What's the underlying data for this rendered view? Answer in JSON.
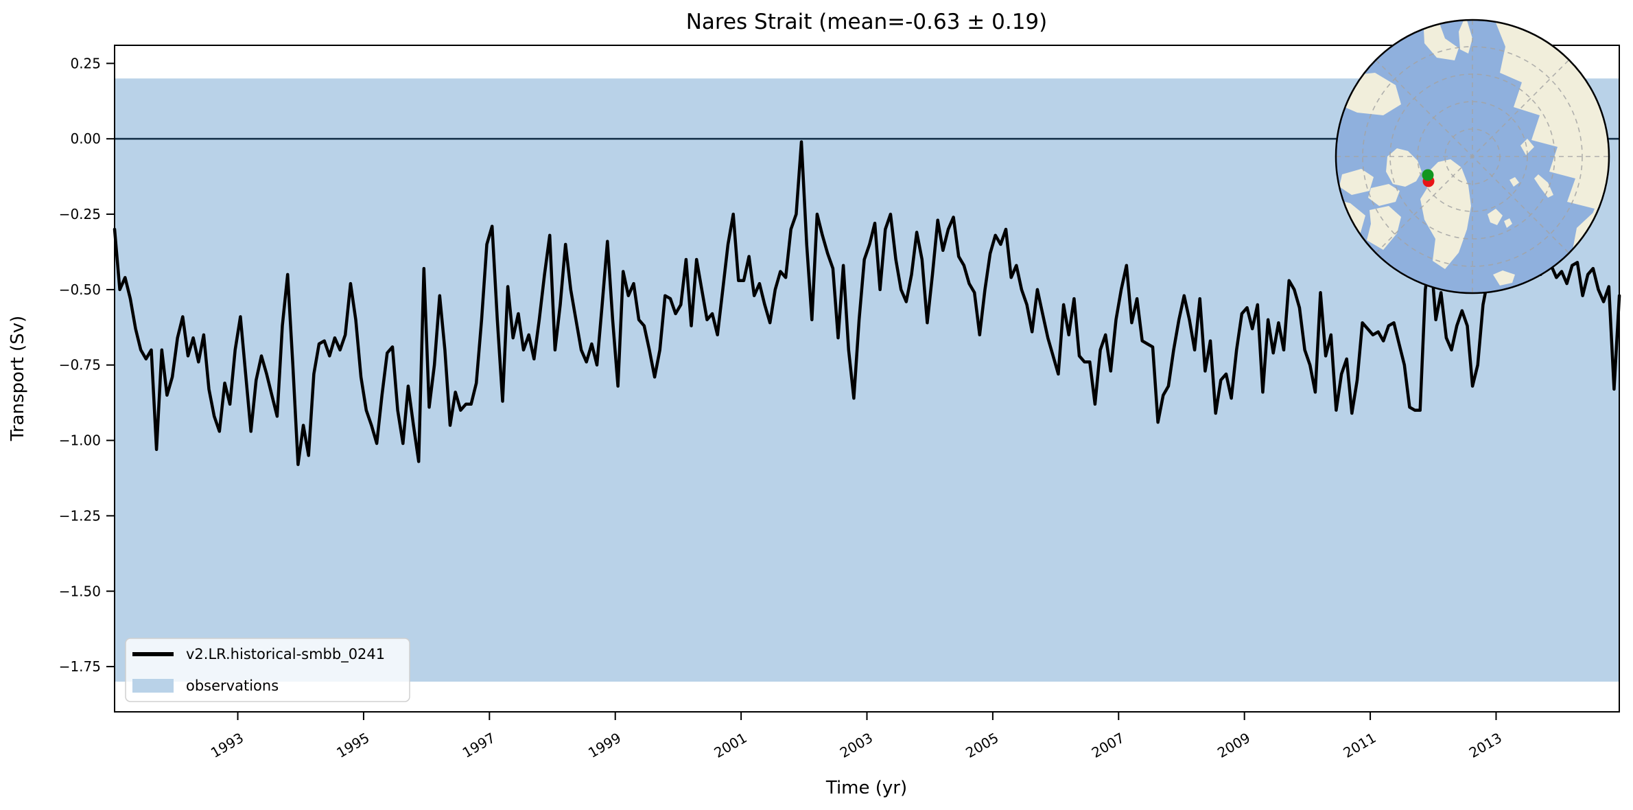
{
  "figure": {
    "title": "Nares Strait (mean=-0.63 ± 0.19)",
    "xlabel": "Time (yr)",
    "ylabel": "Transport (Sv)"
  },
  "legend": {
    "items": [
      {
        "label": "v2.LR.historical-smbb_0241",
        "swatch": "line",
        "color": "#000000"
      },
      {
        "label": "observations",
        "swatch": "patch",
        "color": "#b9d2e8"
      }
    ]
  },
  "chart_data": {
    "type": "line",
    "title": "Nares Strait (mean=-0.63 ± 0.19)",
    "xlabel": "Time (yr)",
    "ylabel": "Transport (Sv)",
    "xlim": [
      1991.042,
      2014.958
    ],
    "ylim": [
      -1.9,
      0.31
    ],
    "grid": false,
    "legend_position": "lower left",
    "x_ticks": [
      1993,
      1995,
      1997,
      1999,
      2001,
      2003,
      2005,
      2007,
      2009,
      2011,
      2013
    ],
    "x_tick_labels": [
      "1993",
      "1995",
      "1997",
      "1999",
      "2001",
      "2003",
      "2005",
      "2007",
      "2009",
      "2011",
      "2013"
    ],
    "y_ticks": [
      0.25,
      0.0,
      -0.25,
      -0.5,
      -0.75,
      -1.0,
      -1.25,
      -1.5,
      -1.75
    ],
    "y_tick_labels": [
      "0.25",
      "0.00",
      "−0.25",
      "−0.50",
      "−0.75",
      "−1.00",
      "−1.25",
      "−1.50",
      "−1.75"
    ],
    "reference_line": {
      "y": 0,
      "color": "#16324a"
    },
    "observations_band": {
      "label": "observations",
      "ymin": -1.8,
      "ymax": 0.2,
      "color": "#b9d2e8"
    },
    "series": [
      {
        "name": "v2.LR.historical-smbb_0241",
        "color": "#000000",
        "x_start": 1991.042,
        "x_step": 0.083333,
        "units": "Sv",
        "values": [
          -0.3,
          -0.5,
          -0.46,
          -0.53,
          -0.63,
          -0.7,
          -0.73,
          -0.7,
          -1.03,
          -0.7,
          -0.85,
          -0.79,
          -0.66,
          -0.59,
          -0.72,
          -0.66,
          -0.74,
          -0.65,
          -0.83,
          -0.92,
          -0.97,
          -0.81,
          -0.88,
          -0.7,
          -0.59,
          -0.78,
          -0.97,
          -0.8,
          -0.72,
          -0.78,
          -0.85,
          -0.92,
          -0.62,
          -0.45,
          -0.75,
          -1.08,
          -0.95,
          -1.05,
          -0.78,
          -0.68,
          -0.67,
          -0.72,
          -0.66,
          -0.7,
          -0.65,
          -0.48,
          -0.6,
          -0.79,
          -0.9,
          -0.95,
          -1.01,
          -0.85,
          -0.71,
          -0.69,
          -0.9,
          -1.01,
          -0.82,
          -0.95,
          -1.07,
          -0.43,
          -0.89,
          -0.75,
          -0.52,
          -0.7,
          -0.95,
          -0.84,
          -0.9,
          -0.88,
          -0.88,
          -0.81,
          -0.6,
          -0.35,
          -0.29,
          -0.6,
          -0.87,
          -0.49,
          -0.66,
          -0.58,
          -0.7,
          -0.65,
          -0.73,
          -0.6,
          -0.45,
          -0.32,
          -0.7,
          -0.55,
          -0.35,
          -0.5,
          -0.6,
          -0.7,
          -0.74,
          -0.68,
          -0.75,
          -0.55,
          -0.34,
          -0.6,
          -0.82,
          -0.44,
          -0.52,
          -0.48,
          -0.6,
          -0.62,
          -0.7,
          -0.79,
          -0.7,
          -0.52,
          -0.53,
          -0.58,
          -0.55,
          -0.4,
          -0.62,
          -0.4,
          -0.5,
          -0.6,
          -0.58,
          -0.65,
          -0.5,
          -0.35,
          -0.25,
          -0.47,
          -0.47,
          -0.39,
          -0.52,
          -0.48,
          -0.55,
          -0.61,
          -0.5,
          -0.44,
          -0.46,
          -0.3,
          -0.25,
          -0.01,
          -0.35,
          -0.6,
          -0.25,
          -0.32,
          -0.38,
          -0.43,
          -0.66,
          -0.42,
          -0.7,
          -0.86,
          -0.6,
          -0.4,
          -0.35,
          -0.28,
          -0.5,
          -0.3,
          -0.25,
          -0.4,
          -0.5,
          -0.54,
          -0.45,
          -0.31,
          -0.4,
          -0.61,
          -0.45,
          -0.27,
          -0.37,
          -0.3,
          -0.26,
          -0.39,
          -0.42,
          -0.48,
          -0.51,
          -0.65,
          -0.5,
          -0.38,
          -0.32,
          -0.35,
          -0.3,
          -0.46,
          -0.42,
          -0.5,
          -0.55,
          -0.64,
          -0.5,
          -0.58,
          -0.66,
          -0.72,
          -0.78,
          -0.55,
          -0.65,
          -0.53,
          -0.72,
          -0.74,
          -0.74,
          -0.88,
          -0.7,
          -0.65,
          -0.77,
          -0.6,
          -0.5,
          -0.42,
          -0.61,
          -0.53,
          -0.67,
          -0.68,
          -0.69,
          -0.94,
          -0.85,
          -0.82,
          -0.7,
          -0.6,
          -0.52,
          -0.6,
          -0.7,
          -0.53,
          -0.77,
          -0.67,
          -0.91,
          -0.8,
          -0.78,
          -0.86,
          -0.7,
          -0.58,
          -0.56,
          -0.63,
          -0.55,
          -0.84,
          -0.6,
          -0.71,
          -0.61,
          -0.7,
          -0.47,
          -0.5,
          -0.56,
          -0.7,
          -0.75,
          -0.84,
          -0.51,
          -0.72,
          -0.65,
          -0.9,
          -0.78,
          -0.73,
          -0.91,
          -0.8,
          -0.61,
          -0.63,
          -0.65,
          -0.64,
          -0.67,
          -0.62,
          -0.61,
          -0.68,
          -0.75,
          -0.89,
          -0.9,
          -0.9,
          -0.5,
          -0.38,
          -0.6,
          -0.51,
          -0.66,
          -0.7,
          -0.62,
          -0.57,
          -0.62,
          -0.82,
          -0.75,
          -0.55,
          -0.46,
          -0.42,
          -0.4,
          -0.35,
          -0.44,
          -0.38,
          -0.33,
          -0.42,
          -0.46,
          -0.4,
          -0.45,
          -0.36,
          -0.42,
          -0.46,
          -0.44,
          -0.48,
          -0.42,
          -0.41,
          -0.52,
          -0.45,
          -0.43,
          -0.5,
          -0.54,
          -0.49,
          -0.83,
          -0.52
        ]
      }
    ]
  },
  "inset_map": {
    "projection": "north-polar",
    "colors": {
      "ocean": "#8fb0dd",
      "land": "#f1eedb",
      "graticule": "#a3a3a3",
      "border": "#000000"
    },
    "markers": [
      {
        "name": "strait-marker-red",
        "color": "#e81417"
      },
      {
        "name": "strait-marker-green",
        "color": "#12961f"
      }
    ]
  }
}
